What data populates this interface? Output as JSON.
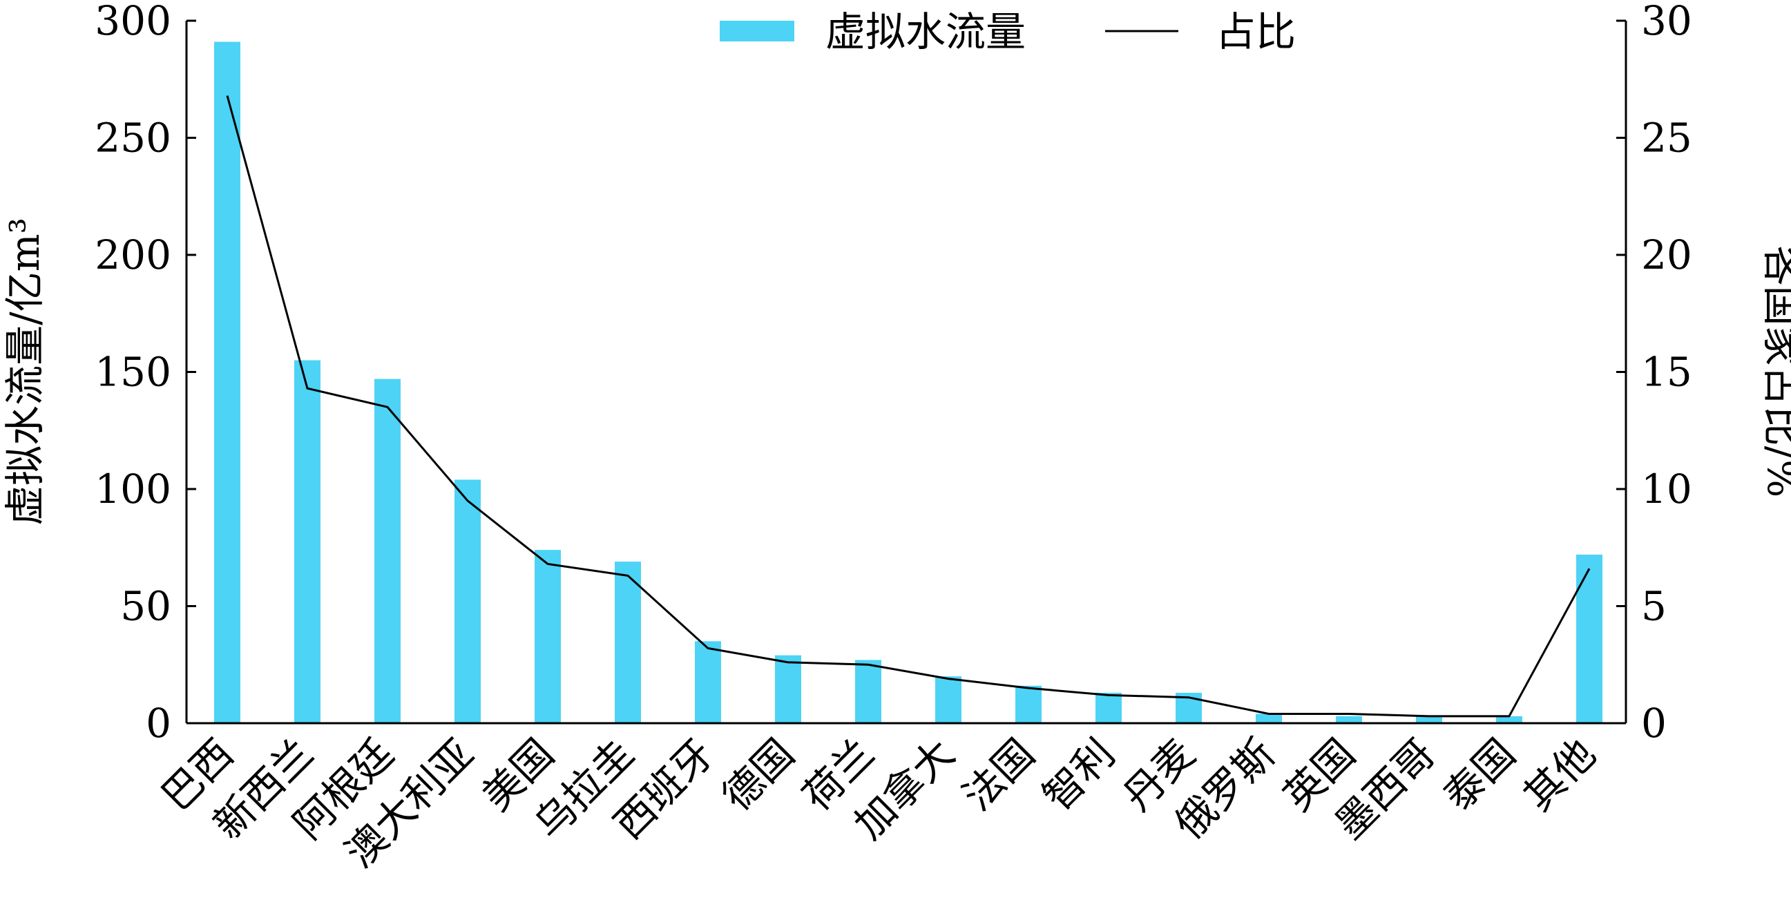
{
  "chart_data": {
    "type": "bar",
    "categories": [
      "巴西",
      "新西兰",
      "阿根廷",
      "澳大利亚",
      "美国",
      "乌拉圭",
      "西班牙",
      "德国",
      "荷兰",
      "加拿大",
      "法国",
      "智利",
      "丹麦",
      "俄罗斯",
      "英国",
      "墨西哥",
      "泰国",
      "其他"
    ],
    "series": [
      {
        "name": "虚拟水流量",
        "type": "bar",
        "axis": "left",
        "color": "#4dd3f5",
        "values": [
          291,
          155,
          147,
          104,
          74,
          69,
          35,
          29,
          27,
          20,
          16,
          13,
          13,
          4,
          3,
          3,
          3,
          72
        ]
      },
      {
        "name": "占比",
        "type": "line",
        "axis": "right",
        "color": "#000000",
        "values": [
          26.8,
          14.3,
          13.5,
          9.5,
          6.8,
          6.3,
          3.2,
          2.6,
          2.5,
          1.9,
          1.5,
          1.2,
          1.1,
          0.4,
          0.4,
          0.3,
          0.3,
          6.6
        ]
      }
    ],
    "ylabel": "虚拟水流量/亿m³",
    "ylabel_right": "各国家占比/%",
    "ylim": [
      0,
      300
    ],
    "ylim_right": [
      0,
      30
    ],
    "yticks": [
      "0",
      "50",
      "100",
      "150",
      "200",
      "250",
      "300"
    ],
    "yticks_right": [
      "0",
      "5",
      "10",
      "15",
      "20",
      "25",
      "30"
    ],
    "legend_position": "top-center",
    "grid": false
  }
}
